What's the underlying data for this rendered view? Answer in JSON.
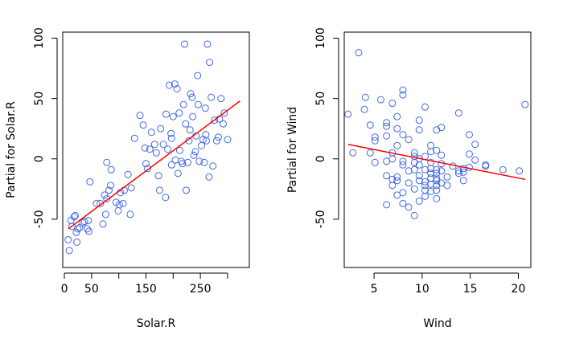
{
  "chart_data": [
    {
      "type": "scatter",
      "xlabel": "Solar.R",
      "ylabel": "Partial for Solar.R",
      "xlim": [
        -3,
        340
      ],
      "ylim": [
        -90,
        105
      ],
      "xticks": [
        0,
        50,
        100,
        150,
        200,
        250,
        300
      ],
      "xtick_labels": [
        "0",
        "50",
        "",
        "150",
        "",
        "250",
        ""
      ],
      "yticks": [
        -50,
        0,
        50,
        100
      ],
      "ytick_labels": [
        "-50",
        "0",
        "50",
        "100"
      ],
      "point_color": "#4169E1",
      "fit_color": "#FF0000",
      "fit_line": {
        "x": [
          7,
          323
        ],
        "y": [
          -58,
          48
        ]
      },
      "points": [
        [
          7,
          -67
        ],
        [
          9,
          -76
        ],
        [
          12,
          -51
        ],
        [
          14,
          -56
        ],
        [
          18,
          -48
        ],
        [
          20,
          -47
        ],
        [
          22,
          -61
        ],
        [
          23,
          -69
        ],
        [
          25,
          -58
        ],
        [
          28,
          -57
        ],
        [
          34,
          -53
        ],
        [
          37,
          -52
        ],
        [
          42,
          -58
        ],
        [
          44,
          -51
        ],
        [
          45,
          -60
        ],
        [
          47,
          -19
        ],
        [
          59,
          -37
        ],
        [
          66,
          -37
        ],
        [
          71,
          -54
        ],
        [
          74,
          -30
        ],
        [
          76,
          -46
        ],
        [
          78,
          -3
        ],
        [
          78,
          -33
        ],
        [
          82,
          -26
        ],
        [
          85,
          -22
        ],
        [
          86,
          -9
        ],
        [
          95,
          -36
        ],
        [
          99,
          -43
        ],
        [
          101,
          -38
        ],
        [
          103,
          -28
        ],
        [
          108,
          -37
        ],
        [
          110,
          -26
        ],
        [
          117,
          -13
        ],
        [
          121,
          -46
        ],
        [
          123,
          -24
        ],
        [
          129,
          17
        ],
        [
          139,
          36
        ],
        [
          145,
          28
        ],
        [
          148,
          9
        ],
        [
          150,
          -4
        ],
        [
          153,
          -8
        ],
        [
          157,
          8
        ],
        [
          160,
          22
        ],
        [
          166,
          12
        ],
        [
          169,
          5
        ],
        [
          173,
          -14
        ],
        [
          175,
          -26
        ],
        [
          177,
          25
        ],
        [
          182,
          12
        ],
        [
          186,
          -32
        ],
        [
          187,
          37
        ],
        [
          190,
          8
        ],
        [
          193,
          61
        ],
        [
          196,
          21
        ],
        [
          197,
          -5
        ],
        [
          200,
          35
        ],
        [
          203,
          62
        ],
        [
          204,
          -1
        ],
        [
          207,
          58
        ],
        [
          209,
          -12
        ],
        [
          211,
          38
        ],
        [
          212,
          7
        ],
        [
          215,
          -2
        ],
        [
          217,
          -4
        ],
        [
          219,
          45
        ],
        [
          221,
          95
        ],
        [
          223,
          29
        ],
        [
          224,
          -26
        ],
        [
          227,
          -3
        ],
        [
          229,
          15
        ],
        [
          231,
          24
        ],
        [
          232,
          54
        ],
        [
          235,
          51
        ],
        [
          236,
          35
        ],
        [
          238,
          3
        ],
        [
          241,
          6
        ],
        [
          242,
          19
        ],
        [
          245,
          69
        ],
        [
          246,
          45
        ],
        [
          248,
          -2
        ],
        [
          252,
          11
        ],
        [
          255,
          16
        ],
        [
          257,
          -3
        ],
        [
          259,
          42
        ],
        [
          260,
          20
        ],
        [
          263,
          95
        ],
        [
          266,
          -15
        ],
        [
          267,
          80
        ],
        [
          270,
          51
        ],
        [
          273,
          -6
        ],
        [
          276,
          32
        ],
        [
          280,
          15
        ],
        [
          283,
          18
        ],
        [
          285,
          33
        ],
        [
          288,
          50
        ],
        [
          292,
          29
        ],
        [
          294,
          38
        ],
        [
          300,
          16
        ],
        [
          261,
          15
        ],
        [
          197,
          17
        ]
      ]
    },
    {
      "type": "scatter",
      "xlabel": "Wind",
      "ylabel": "Partial for Wind",
      "xlim": [
        1.9,
        21.3
      ],
      "ylim": [
        -90,
        105
      ],
      "xticks": [
        5,
        10,
        15,
        20
      ],
      "xtick_labels": [
        "5",
        "10",
        "15",
        "20"
      ],
      "yticks": [
        -50,
        0,
        50,
        100
      ],
      "ytick_labels": [
        "-50",
        "0",
        "50",
        "100"
      ],
      "point_color": "#4169E1",
      "fit_color": "#FF0000",
      "fit_line": {
        "x": [
          2.3,
          20.7
        ],
        "y": [
          12,
          -17
        ]
      },
      "points": [
        [
          2.3,
          37
        ],
        [
          2.8,
          5
        ],
        [
          3.4,
          88
        ],
        [
          4.0,
          41
        ],
        [
          4.1,
          51
        ],
        [
          4.6,
          28
        ],
        [
          4.6,
          5
        ],
        [
          5.1,
          15
        ],
        [
          5.1,
          -3
        ],
        [
          5.1,
          18
        ],
        [
          5.7,
          49
        ],
        [
          6.3,
          -14
        ],
        [
          6.3,
          -38
        ],
        [
          6.3,
          30
        ],
        [
          6.3,
          27
        ],
        [
          6.3,
          19
        ],
        [
          6.9,
          46
        ],
        [
          6.9,
          0
        ],
        [
          6.9,
          -17
        ],
        [
          6.9,
          5
        ],
        [
          6.9,
          -22
        ],
        [
          7.4,
          -30
        ],
        [
          7.4,
          11
        ],
        [
          7.4,
          35
        ],
        [
          7.4,
          -15
        ],
        [
          7.4,
          25
        ],
        [
          8.0,
          20
        ],
        [
          8.0,
          57
        ],
        [
          8.0,
          53
        ],
        [
          8.0,
          -2
        ],
        [
          8.0,
          -37
        ],
        [
          8.6,
          -40
        ],
        [
          8.6,
          -10
        ],
        [
          8.6,
          16
        ],
        [
          8.6,
          -20
        ],
        [
          9.2,
          -47
        ],
        [
          9.2,
          -25
        ],
        [
          9.2,
          -9
        ],
        [
          9.2,
          2
        ],
        [
          9.2,
          5
        ],
        [
          9.7,
          -18
        ],
        [
          9.7,
          24
        ],
        [
          9.7,
          -35
        ],
        [
          9.7,
          -5
        ],
        [
          9.7,
          32
        ],
        [
          9.7,
          -14
        ],
        [
          10.3,
          -26
        ],
        [
          10.3,
          2
        ],
        [
          10.3,
          43
        ],
        [
          10.3,
          -19
        ],
        [
          10.3,
          -9
        ],
        [
          10.3,
          -31
        ],
        [
          10.9,
          -12
        ],
        [
          10.9,
          -16
        ],
        [
          10.9,
          -3
        ],
        [
          10.9,
          -21
        ],
        [
          10.9,
          -27
        ],
        [
          10.9,
          6
        ],
        [
          11.5,
          -33
        ],
        [
          11.5,
          -16
        ],
        [
          11.5,
          -9
        ],
        [
          11.5,
          -22
        ],
        [
          11.5,
          -26
        ],
        [
          11.5,
          7
        ],
        [
          11.5,
          -12
        ],
        [
          12.0,
          -10
        ],
        [
          12.0,
          26
        ],
        [
          12.0,
          -20
        ],
        [
          12.0,
          3
        ],
        [
          12.6,
          -15
        ],
        [
          13.2,
          -6
        ],
        [
          13.8,
          38
        ],
        [
          13.8,
          -12
        ],
        [
          14.3,
          -18
        ],
        [
          14.3,
          -11
        ],
        [
          14.9,
          4
        ],
        [
          14.9,
          20
        ],
        [
          15.5,
          12
        ],
        [
          16.6,
          -5
        ],
        [
          18.4,
          -9
        ],
        [
          20.1,
          -10
        ],
        [
          20.7,
          45
        ],
        [
          11.5,
          24
        ],
        [
          10.9,
          11
        ],
        [
          6.3,
          -2
        ],
        [
          8.0,
          -28
        ],
        [
          12.6,
          -22
        ],
        [
          14.3,
          -8
        ],
        [
          15.5,
          -1
        ],
        [
          16.6,
          -6
        ],
        [
          9.2,
          -3
        ],
        [
          10.3,
          -22
        ],
        [
          7.4,
          -18
        ],
        [
          13.8,
          -10
        ],
        [
          11.5,
          -18
        ],
        [
          9.7,
          0
        ],
        [
          14.9,
          -7
        ],
        [
          8.0,
          -5
        ],
        [
          12.0,
          -4
        ],
        [
          10.9,
          -8
        ]
      ]
    }
  ]
}
